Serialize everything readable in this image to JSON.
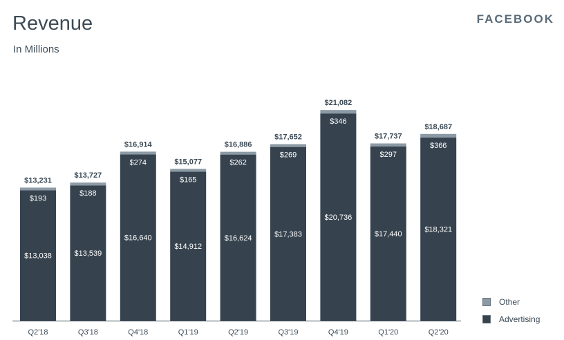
{
  "title": "Revenue",
  "subtitle": "In Millions",
  "brand": "FACEBOOK",
  "colors": {
    "advertising": "#36434f",
    "other": "#8c9aa5",
    "axis": "#3b4a56"
  },
  "legend": [
    {
      "name": "Other",
      "color": "#8c9aa5"
    },
    {
      "name": "Advertising",
      "color": "#36434f"
    }
  ],
  "chart_data": {
    "type": "bar",
    "stacked": true,
    "title": "Revenue",
    "subtitle": "In Millions",
    "categories": [
      "Q2'18",
      "Q3'18",
      "Q4'18",
      "Q1'19",
      "Q2'19",
      "Q3'19",
      "Q4'19",
      "Q1'20",
      "Q2'20"
    ],
    "series": [
      {
        "name": "Advertising",
        "values": [
          13038,
          13539,
          16640,
          14912,
          16624,
          17383,
          20736,
          17440,
          18321
        ],
        "labels": [
          "$13,038",
          "$13,539",
          "$16,640",
          "$14,912",
          "$16,624",
          "$17,383",
          "$20,736",
          "$17,440",
          "$18,321"
        ]
      },
      {
        "name": "Other",
        "values": [
          193,
          188,
          274,
          165,
          262,
          269,
          346,
          297,
          366
        ],
        "labels": [
          "$193",
          "$188",
          "$274",
          "$165",
          "$262",
          "$269",
          "$346",
          "$297",
          "$366"
        ]
      }
    ],
    "totals": [
      13231,
      13727,
      16914,
      15077,
      16886,
      17652,
      21082,
      17737,
      18687
    ],
    "total_labels": [
      "$13,231",
      "$13,727",
      "$16,914",
      "$15,077",
      "$16,886",
      "$17,652",
      "$21,082",
      "$17,737",
      "$18,687"
    ],
    "legend_position": "bottom-right",
    "grid": false
  }
}
